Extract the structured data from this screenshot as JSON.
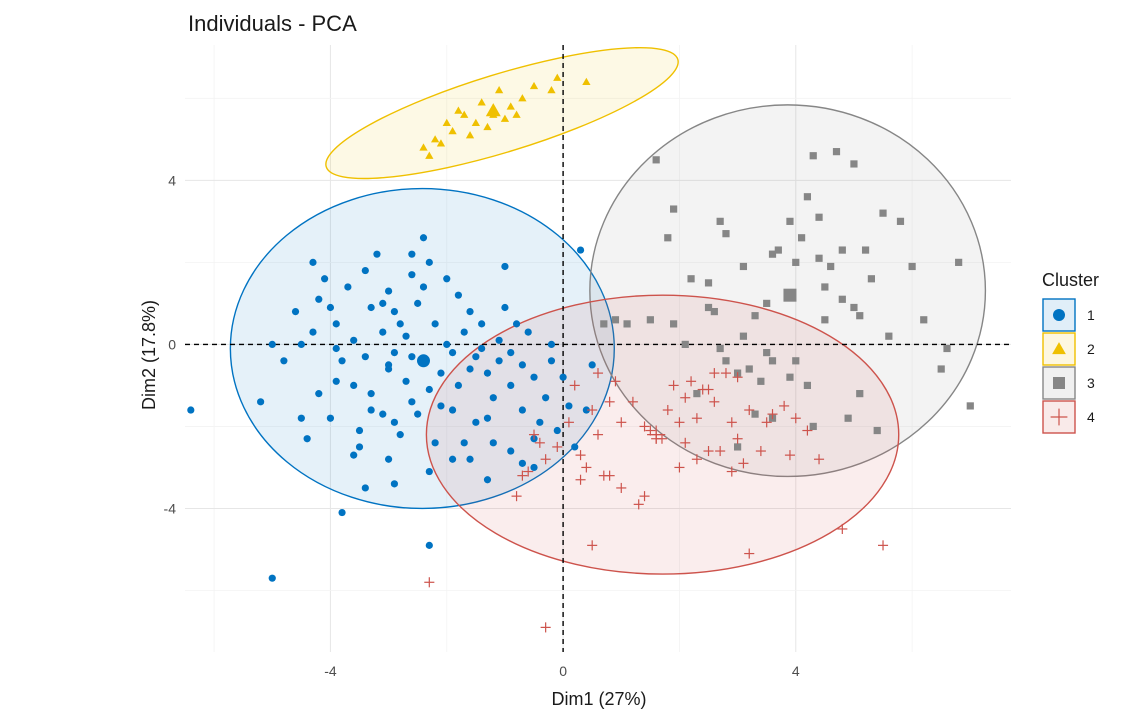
{
  "chart_data": {
    "type": "scatter",
    "title": "Individuals - PCA",
    "xlabel": "Dim1 (27%)",
    "ylabel": "Dim2 (17.8%)",
    "xlim": [
      -6.5,
      7.7
    ],
    "ylim": [
      -7.5,
      7.3
    ],
    "x_ticks": [
      -4,
      0,
      4
    ],
    "y_ticks": [
      -4,
      0,
      4
    ],
    "grid": true,
    "reference_lines": {
      "x": 0,
      "y": 0,
      "style": "dashed"
    },
    "legend": {
      "title": "Cluster",
      "position": "right"
    },
    "series": [
      {
        "name": "1",
        "marker": "circle",
        "color": "#0073C2",
        "ellipse": {
          "cx": -2.42,
          "cy": -0.1,
          "rx": 3.3,
          "ry": 3.9,
          "angle": 0
        },
        "centroid": [
          -2.4,
          -0.4
        ],
        "points": [
          [
            -6.4,
            -1.6
          ],
          [
            -5.0,
            -5.7
          ],
          [
            -4.3,
            2.0
          ],
          [
            -4.2,
            1.1
          ],
          [
            -4.0,
            0.9
          ],
          [
            -4.5,
            0.0
          ],
          [
            -3.9,
            0.5
          ],
          [
            -3.6,
            0.1
          ],
          [
            -3.8,
            -0.4
          ],
          [
            -3.9,
            -0.9
          ],
          [
            -4.2,
            -1.2
          ],
          [
            -4.5,
            -1.8
          ],
          [
            -3.4,
            1.8
          ],
          [
            -3.2,
            2.2
          ],
          [
            -3.0,
            1.3
          ],
          [
            -2.9,
            0.8
          ],
          [
            -2.7,
            0.2
          ],
          [
            -2.6,
            -0.3
          ],
          [
            -3.0,
            -0.6
          ],
          [
            -3.3,
            -1.2
          ],
          [
            -3.1,
            -1.7
          ],
          [
            -2.8,
            -2.2
          ],
          [
            -2.5,
            -1.7
          ],
          [
            -2.3,
            -1.1
          ],
          [
            -2.1,
            -0.7
          ],
          [
            -1.9,
            -0.2
          ],
          [
            -1.7,
            0.3
          ],
          [
            -1.6,
            0.8
          ],
          [
            -1.8,
            1.2
          ],
          [
            -2.0,
            1.6
          ],
          [
            -2.3,
            2.0
          ],
          [
            -2.4,
            2.6
          ],
          [
            -2.6,
            2.2
          ],
          [
            -2.2,
            0.5
          ],
          [
            -2.0,
            0.0
          ],
          [
            -1.5,
            -0.3
          ],
          [
            -1.3,
            -0.7
          ],
          [
            -1.2,
            -1.3
          ],
          [
            -1.5,
            -1.9
          ],
          [
            -1.7,
            -2.4
          ],
          [
            -1.9,
            -2.8
          ],
          [
            -2.3,
            -3.1
          ],
          [
            -3.0,
            -2.8
          ],
          [
            -3.5,
            -2.5
          ],
          [
            -4.0,
            -1.8
          ],
          [
            -4.8,
            -0.4
          ],
          [
            -5.0,
            0.0
          ],
          [
            -4.6,
            0.8
          ],
          [
            -3.7,
            1.4
          ],
          [
            -3.3,
            0.9
          ],
          [
            -3.1,
            0.3
          ],
          [
            -2.9,
            -0.2
          ],
          [
            -2.7,
            -0.9
          ],
          [
            -2.6,
            -1.4
          ],
          [
            -2.9,
            -1.9
          ],
          [
            -3.5,
            -2.1
          ],
          [
            -3.6,
            -2.7
          ],
          [
            -3.8,
            -4.1
          ],
          [
            -2.3,
            -4.9
          ],
          [
            -1.6,
            -2.8
          ],
          [
            -1.2,
            -2.4
          ],
          [
            -0.9,
            -2.6
          ],
          [
            -0.7,
            -2.9
          ],
          [
            -0.5,
            -2.3
          ],
          [
            -0.4,
            -1.9
          ],
          [
            -0.3,
            -1.3
          ],
          [
            -0.5,
            -0.8
          ],
          [
            -0.7,
            -0.5
          ],
          [
            -0.9,
            -0.2
          ],
          [
            -1.1,
            0.1
          ],
          [
            -1.4,
            0.5
          ],
          [
            -1.0,
            0.9
          ],
          [
            -0.8,
            0.5
          ],
          [
            -0.6,
            0.3
          ],
          [
            -0.2,
            -0.4
          ],
          [
            0.0,
            -0.8
          ],
          [
            0.1,
            -1.5
          ],
          [
            -0.1,
            -2.1
          ],
          [
            0.2,
            -2.5
          ],
          [
            0.4,
            -1.6
          ],
          [
            0.3,
            2.3
          ],
          [
            -1.0,
            1.9
          ],
          [
            -0.5,
            -3.0
          ],
          [
            -1.3,
            -3.3
          ],
          [
            -4.3,
            0.3
          ],
          [
            -3.9,
            -0.1
          ],
          [
            -3.4,
            -0.3
          ],
          [
            -3.0,
            -0.5
          ],
          [
            -2.8,
            0.5
          ],
          [
            -2.5,
            1.0
          ],
          [
            -2.4,
            1.4
          ],
          [
            -2.1,
            -1.5
          ],
          [
            -1.8,
            -1.0
          ],
          [
            -1.6,
            -0.6
          ],
          [
            -1.4,
            -0.1
          ],
          [
            -1.1,
            -0.4
          ],
          [
            -0.9,
            -1.0
          ],
          [
            -0.7,
            -1.6
          ],
          [
            -1.3,
            -1.8
          ],
          [
            -1.9,
            -1.6
          ],
          [
            -3.3,
            -1.6
          ],
          [
            -3.6,
            -1.0
          ],
          [
            -3.1,
            1.0
          ],
          [
            -2.6,
            1.7
          ],
          [
            -4.1,
            1.6
          ],
          [
            -2.2,
            -2.4
          ],
          [
            -2.9,
            -3.4
          ],
          [
            -0.2,
            0.0
          ],
          [
            0.5,
            -0.5
          ],
          [
            -3.4,
            -3.5
          ],
          [
            -4.4,
            -2.3
          ],
          [
            -5.2,
            -1.4
          ]
        ]
      },
      {
        "name": "2",
        "marker": "triangle",
        "color": "#EFC000",
        "ellipse": {
          "cx": -1.05,
          "cy": 5.64,
          "rx": 3.16,
          "ry": 0.95,
          "angle": -17
        },
        "centroid": [
          -1.2,
          5.7
        ],
        "points": [
          [
            -2.3,
            4.6
          ],
          [
            -2.1,
            4.9
          ],
          [
            -1.9,
            5.2
          ],
          [
            -1.7,
            5.6
          ],
          [
            -1.5,
            5.4
          ],
          [
            -1.4,
            5.9
          ],
          [
            -1.2,
            5.6
          ],
          [
            -1.1,
            6.2
          ],
          [
            -0.9,
            5.8
          ],
          [
            -0.7,
            6.0
          ],
          [
            -0.5,
            6.3
          ],
          [
            -0.2,
            6.2
          ],
          [
            -0.1,
            6.5
          ],
          [
            0.4,
            6.4
          ],
          [
            -2.0,
            5.4
          ],
          [
            -1.6,
            5.1
          ],
          [
            -1.3,
            5.3
          ],
          [
            -1.0,
            5.5
          ],
          [
            -0.8,
            5.6
          ],
          [
            -1.8,
            5.7
          ],
          [
            -2.2,
            5.0
          ],
          [
            -2.4,
            4.8
          ]
        ]
      },
      {
        "name": "3",
        "marker": "square",
        "color": "#868686",
        "ellipse": {
          "cx": 3.86,
          "cy": 1.31,
          "rx": 3.4,
          "ry": 4.53,
          "angle": 0
        },
        "centroid": [
          3.9,
          1.2
        ],
        "points": [
          [
            1.6,
            4.5
          ],
          [
            1.9,
            3.3
          ],
          [
            1.8,
            2.6
          ],
          [
            2.2,
            1.6
          ],
          [
            2.5,
            1.5
          ],
          [
            2.7,
            3.0
          ],
          [
            2.8,
            2.7
          ],
          [
            3.1,
            1.9
          ],
          [
            3.1,
            0.2
          ],
          [
            3.3,
            0.7
          ],
          [
            3.5,
            1.0
          ],
          [
            3.5,
            -0.2
          ],
          [
            3.7,
            2.3
          ],
          [
            3.9,
            3.0
          ],
          [
            4.0,
            2.0
          ],
          [
            4.1,
            2.6
          ],
          [
            4.2,
            3.6
          ],
          [
            4.3,
            4.6
          ],
          [
            4.4,
            2.1
          ],
          [
            4.5,
            1.4
          ],
          [
            4.5,
            0.6
          ],
          [
            4.6,
            1.9
          ],
          [
            4.8,
            2.3
          ],
          [
            4.8,
            1.1
          ],
          [
            5.0,
            0.9
          ],
          [
            5.1,
            0.7
          ],
          [
            5.2,
            2.3
          ],
          [
            5.3,
            1.6
          ],
          [
            5.5,
            3.2
          ],
          [
            5.8,
            3.0
          ],
          [
            6.0,
            1.9
          ],
          [
            6.2,
            0.6
          ],
          [
            6.6,
            -0.1
          ],
          [
            6.8,
            2.0
          ],
          [
            7.0,
            -1.5
          ],
          [
            3.6,
            -1.8
          ],
          [
            3.9,
            -0.8
          ],
          [
            4.2,
            -1.0
          ],
          [
            4.3,
            -2.0
          ],
          [
            3.3,
            -1.7
          ],
          [
            3.0,
            -0.7
          ],
          [
            2.7,
            -0.1
          ],
          [
            2.5,
            0.9
          ],
          [
            2.3,
            -1.2
          ],
          [
            2.1,
            0.0
          ],
          [
            1.9,
            0.5
          ],
          [
            1.5,
            0.6
          ],
          [
            1.1,
            0.5
          ],
          [
            0.9,
            0.6
          ],
          [
            0.7,
            0.5
          ],
          [
            4.7,
            4.7
          ],
          [
            5.0,
            4.4
          ],
          [
            3.6,
            2.2
          ],
          [
            4.4,
            3.1
          ],
          [
            2.6,
            0.8
          ],
          [
            3.2,
            -0.6
          ],
          [
            3.4,
            -0.9
          ],
          [
            2.8,
            -0.4
          ],
          [
            4.0,
            -0.4
          ],
          [
            5.1,
            -1.2
          ],
          [
            5.4,
            -2.1
          ],
          [
            6.5,
            -0.6
          ],
          [
            4.9,
            -1.8
          ],
          [
            5.6,
            0.2
          ],
          [
            3.0,
            -2.5
          ],
          [
            3.6,
            -0.4
          ]
        ]
      },
      {
        "name": "4",
        "marker": "cross",
        "color": "#CD534C",
        "ellipse": {
          "cx": 1.71,
          "cy": -2.2,
          "rx": 4.06,
          "ry": 3.4,
          "angle": 0
        },
        "centroid": [
          1.6,
          -2.2
        ],
        "points": [
          [
            -2.3,
            -5.8
          ],
          [
            -0.3,
            -6.9
          ],
          [
            -0.8,
            -3.7
          ],
          [
            -0.7,
            -3.2
          ],
          [
            -0.5,
            -2.2
          ],
          [
            -0.3,
            -2.8
          ],
          [
            -0.1,
            -2.5
          ],
          [
            0.1,
            -1.9
          ],
          [
            0.2,
            -1.0
          ],
          [
            0.3,
            -2.7
          ],
          [
            0.4,
            -3.0
          ],
          [
            0.5,
            -1.6
          ],
          [
            0.6,
            -0.7
          ],
          [
            0.6,
            -2.2
          ],
          [
            0.7,
            -3.2
          ],
          [
            0.8,
            -1.4
          ],
          [
            0.9,
            -0.9
          ],
          [
            1.0,
            -1.9
          ],
          [
            1.2,
            -1.4
          ],
          [
            1.4,
            -2.0
          ],
          [
            1.6,
            -2.3
          ],
          [
            1.9,
            -1.0
          ],
          [
            2.0,
            -1.9
          ],
          [
            2.1,
            -2.4
          ],
          [
            2.3,
            -1.8
          ],
          [
            2.4,
            -1.1
          ],
          [
            2.5,
            -2.6
          ],
          [
            2.6,
            -1.4
          ],
          [
            2.8,
            -0.7
          ],
          [
            2.9,
            -1.9
          ],
          [
            3.0,
            -2.3
          ],
          [
            3.2,
            -1.6
          ],
          [
            3.4,
            -2.6
          ],
          [
            3.6,
            -1.7
          ],
          [
            3.8,
            -1.5
          ],
          [
            4.0,
            -1.8
          ],
          [
            4.2,
            -2.1
          ],
          [
            4.4,
            -2.8
          ],
          [
            1.4,
            -3.7
          ],
          [
            1.3,
            -3.9
          ],
          [
            2.0,
            -3.0
          ],
          [
            2.5,
            -1.1
          ],
          [
            0.5,
            -4.9
          ],
          [
            3.2,
            -5.1
          ],
          [
            4.8,
            -4.5
          ],
          [
            5.5,
            -4.9
          ],
          [
            1.0,
            -3.5
          ],
          [
            0.8,
            -3.2
          ],
          [
            1.7,
            -2.3
          ],
          [
            2.2,
            -0.9
          ],
          [
            2.6,
            -0.7
          ],
          [
            3.0,
            -0.8
          ],
          [
            3.5,
            -1.9
          ],
          [
            3.9,
            -2.7
          ],
          [
            2.9,
            -3.1
          ],
          [
            2.3,
            -2.8
          ],
          [
            1.6,
            -2.2
          ],
          [
            1.5,
            -2.1
          ],
          [
            0.3,
            -3.3
          ],
          [
            -0.4,
            -2.4
          ],
          [
            -0.6,
            -3.1
          ],
          [
            2.7,
            -2.6
          ],
          [
            3.1,
            -2.9
          ],
          [
            1.8,
            -1.6
          ],
          [
            2.1,
            -1.3
          ]
        ]
      }
    ]
  }
}
